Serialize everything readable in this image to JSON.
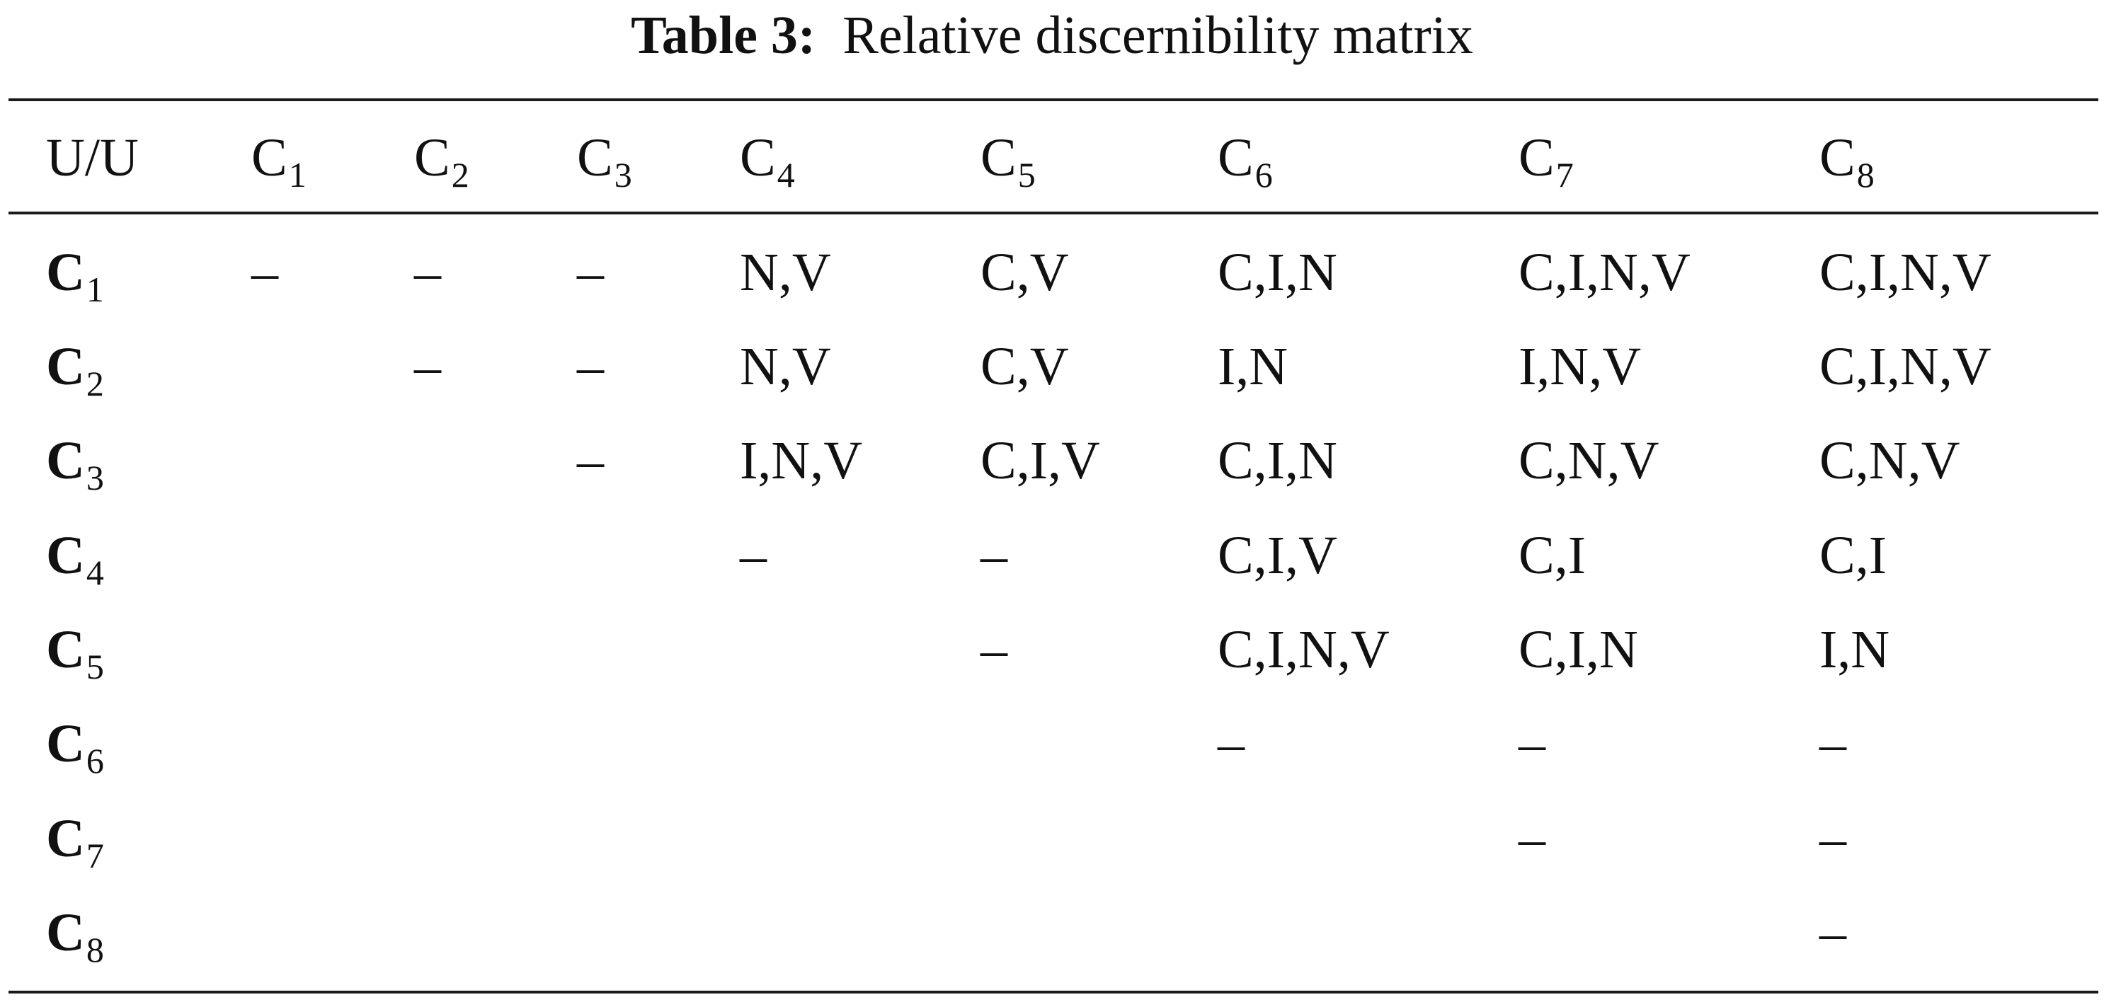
{
  "caption": {
    "label": "Table 3:",
    "title": "Relative discernibility matrix"
  },
  "table": {
    "corner": "U/U",
    "columns": [
      {
        "base": "C",
        "sub": "1"
      },
      {
        "base": "C",
        "sub": "2"
      },
      {
        "base": "C",
        "sub": "3"
      },
      {
        "base": "C",
        "sub": "4"
      },
      {
        "base": "C",
        "sub": "5"
      },
      {
        "base": "C",
        "sub": "6"
      },
      {
        "base": "C",
        "sub": "7"
      },
      {
        "base": "C",
        "sub": "8"
      }
    ],
    "rows": [
      {
        "base": "C",
        "sub": "1",
        "cells": [
          "–",
          "–",
          "–",
          "N,V",
          "C,V",
          "C,I,N",
          "C,I,N,V",
          "C,I,N,V"
        ]
      },
      {
        "base": "C",
        "sub": "2",
        "cells": [
          "",
          "–",
          "–",
          "N,V",
          "C,V",
          "I,N",
          "I,N,V",
          "C,I,N,V"
        ]
      },
      {
        "base": "C",
        "sub": "3",
        "cells": [
          "",
          "",
          "–",
          "I,N,V",
          "C,I,V",
          "C,I,N",
          "C,N,V",
          "C,N,V"
        ]
      },
      {
        "base": "C",
        "sub": "4",
        "cells": [
          "",
          "",
          "",
          "–",
          "–",
          "C,I,V",
          "C,I",
          "C,I"
        ]
      },
      {
        "base": "C",
        "sub": "5",
        "cells": [
          "",
          "",
          "",
          "",
          "–",
          "C,I,N,V",
          "C,I,N",
          "I,N"
        ]
      },
      {
        "base": "C",
        "sub": "6",
        "cells": [
          "",
          "",
          "",
          "",
          "",
          "–",
          "–",
          "–"
        ]
      },
      {
        "base": "C",
        "sub": "7",
        "cells": [
          "",
          "",
          "",
          "",
          "",
          "",
          "–",
          "–"
        ]
      },
      {
        "base": "C",
        "sub": "8",
        "cells": [
          "",
          "",
          "",
          "",
          "",
          "",
          "",
          "–"
        ]
      }
    ]
  }
}
